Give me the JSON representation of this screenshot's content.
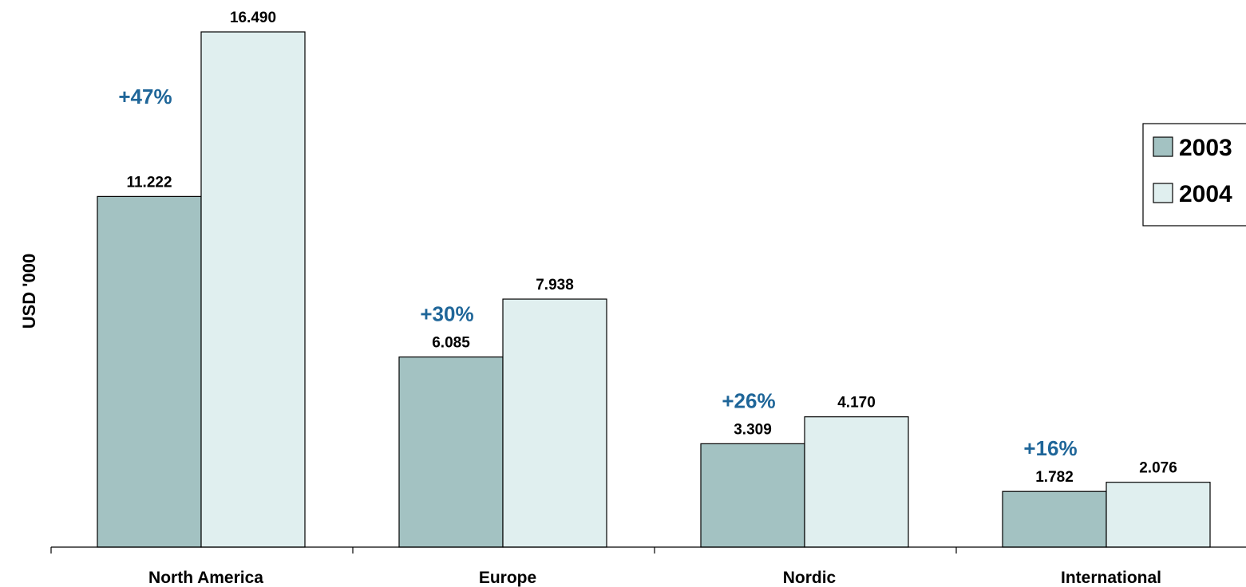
{
  "chart_data": {
    "type": "bar",
    "title": "",
    "xlabel": "",
    "ylabel": "USD '000",
    "categories": [
      "North America",
      "Europe",
      "Nordic",
      "International"
    ],
    "series": [
      {
        "name": "2003",
        "values": [
          11222,
          6085,
          3309,
          1782
        ],
        "labels": [
          "11.222",
          "6.085",
          "3.309",
          "1.782"
        ]
      },
      {
        "name": "2004",
        "values": [
          16490,
          7938,
          4170,
          2076
        ],
        "labels": [
          "16.490",
          "7.938",
          "4.170",
          "2.076"
        ]
      }
    ],
    "growth_labels": [
      "+47%",
      "+30%",
      "+26%",
      "+16%"
    ],
    "ylim": [
      0,
      16490
    ],
    "grid": false,
    "legend": "right",
    "colors": {
      "series_2003": "#a3c2c2",
      "series_2004": "#e0efef",
      "growth_text": "#1f6699",
      "bar_border": "#000000"
    }
  }
}
